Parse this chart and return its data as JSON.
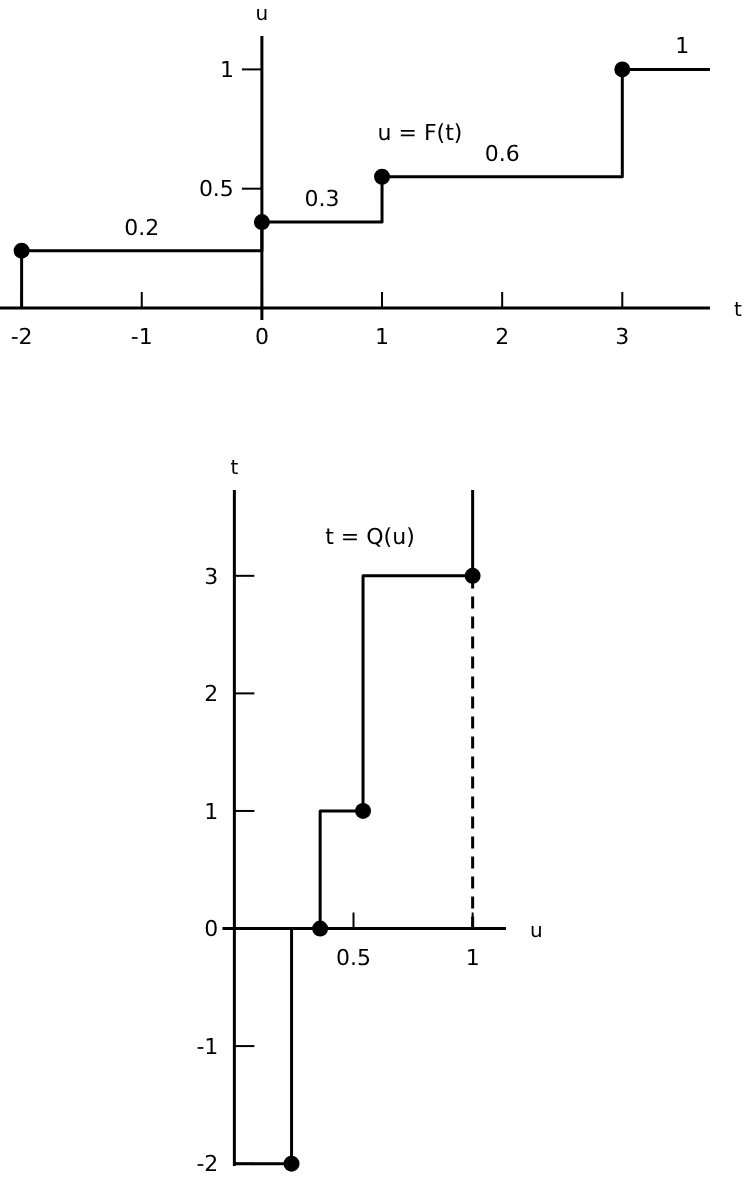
{
  "chart_data": [
    {
      "type": "line",
      "title": "u = F(t)",
      "xlabel": "t",
      "ylabel": "u",
      "xlim": [
        -2.18,
        3.73
      ],
      "ylim": [
        -0.05,
        1.14
      ],
      "xticks": [
        -2,
        -1,
        0,
        1,
        2,
        3
      ],
      "yticks": [
        0.5,
        1
      ],
      "grid": false,
      "series": [
        {
          "color": "#000000",
          "x": [
            -2,
            -2,
            0,
            0,
            1,
            1,
            3,
            3,
            3.73
          ],
          "values": [
            0,
            0.24,
            0.24,
            0.36,
            0.36,
            0.55,
            0.55,
            1,
            1
          ]
        },
        {
          "type": "scatter",
          "color": "#000000",
          "marker": "circle",
          "x": [
            -2,
            0,
            1,
            3
          ],
          "values": [
            0.24,
            0.36,
            0.55,
            1
          ]
        }
      ],
      "annotations": [
        {
          "text": "0.2",
          "x": -1,
          "y": 0.24
        },
        {
          "text": "0.3",
          "x": 0.5,
          "y": 0.36
        },
        {
          "text": "0.6",
          "x": 2,
          "y": 0.55
        },
        {
          "text": "1",
          "x": 3.5,
          "y": 1
        }
      ]
    },
    {
      "type": "line",
      "title": "t = Q(u)",
      "xlabel": "u",
      "ylabel": "t",
      "xlim": [
        -0.05,
        1.14
      ],
      "ylim": [
        -2.02,
        3.73
      ],
      "xticks": [
        0.5,
        1
      ],
      "yticks": [
        -2,
        -1,
        0,
        1,
        2,
        3
      ],
      "grid": false,
      "series": [
        {
          "color": "#000000",
          "x": [
            0,
            0.24,
            0.24,
            0.36,
            0.36,
            0.54,
            0.54,
            1,
            1
          ],
          "values": [
            -2,
            -2,
            0,
            0,
            1,
            1,
            3,
            3,
            3.73
          ]
        },
        {
          "type": "scatter",
          "color": "#000000",
          "marker": "circle",
          "x": [
            0.24,
            0.36,
            0.54,
            1
          ],
          "values": [
            -2,
            0,
            1,
            3
          ]
        },
        {
          "color": "#000000",
          "line_style": "dashed",
          "x": [
            1,
            1
          ],
          "values": [
            0,
            3
          ]
        }
      ]
    }
  ]
}
